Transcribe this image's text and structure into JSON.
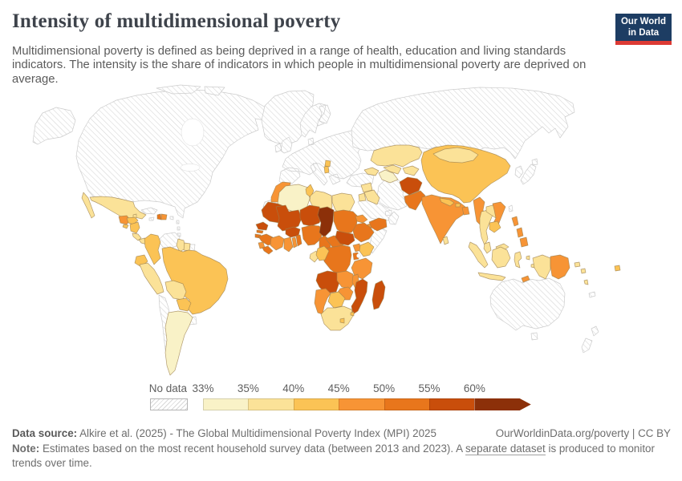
{
  "header": {
    "title": "Intensity of multidimensional poverty",
    "subtitle": "Multidimensional poverty is defined as being deprived in a range of health, education and living standards indicators. The intensity is the share of indicators in which people in multidimensional poverty are deprived on average.",
    "logo": {
      "line1": "Our World",
      "line2": "in Data"
    }
  },
  "legend": {
    "no_data_label": "No data",
    "ticks": [
      "33%",
      "35%",
      "40%",
      "45%",
      "50%",
      "55%",
      "60%"
    ]
  },
  "colors": {
    "palette": [
      "#F9F2C7",
      "#FBE298",
      "#FBC355",
      "#F79435",
      "#E8761C",
      "#C94E0B",
      "#8C3009"
    ],
    "no_data_hatch_line": "#d5d5d5",
    "data_border": "#9b7f4e",
    "no_data_border": "#cccccc",
    "logo_navy": "#1d3d63",
    "logo_red": "#dc3a34"
  },
  "footer": {
    "source_label": "Data source:",
    "source_text": " Alkire et al. (2025) - The Global Multidimensional Poverty Index (MPI) 2025",
    "rights": "OurWorldinData.org/poverty | CC BY",
    "note_label": "Note:",
    "note_pre": " Estimates based on the most recent household survey data (between 2013 and 2023). A ",
    "note_link": "separate dataset",
    "note_post": " is produced to monitor trends over time."
  },
  "chart_data": {
    "type": "choropleth_map",
    "title": "Intensity of multidimensional poverty",
    "unit": "%",
    "legend_position": "bottom",
    "bin_edges_percent": [
      33,
      35,
      40,
      45,
      50,
      55,
      60
    ],
    "bin_ranges": [
      "33-35%",
      "35-40%",
      "40-45%",
      "45-50%",
      "50-55%",
      "55-60%",
      "60%+"
    ],
    "palette": [
      "#F9F2C7",
      "#FBE298",
      "#FBC355",
      "#F79435",
      "#E8761C",
      "#C94E0B",
      "#8C3009"
    ],
    "bin_meaning": "0 = no data (hatched); 1-7 = index into bin_ranges/palette",
    "regions": {
      "alaska": 0,
      "canada-usa": 0,
      "arctic-islands": 0,
      "greenland": 0,
      "iceland": 0,
      "europe": 0,
      "russia": 0,
      "turkey": 0,
      "iran": 0,
      "saudi-arabia": 0,
      "oman": 0,
      "uae": 0,
      "somalia": 0,
      "western-sahara": 0,
      "venezuela": 0,
      "french-guiana": 0,
      "cuba": 0,
      "jamaica": 0,
      "puerto-rico": 0,
      "lesser-antilles": 0,
      "chile": 0,
      "uruguay": 0,
      "australia": 0,
      "new-zealand": 0,
      "new-caledonia": 0,
      "japan": 0,
      "korea": 0,
      "taiwan": 0,
      "argentina": 1,
      "algeria": 1,
      "turkmenistan": 1,
      "mexico": 2,
      "belize": 2,
      "costa-rica": 2,
      "panama": 2,
      "guyana": 2,
      "suriname": 2,
      "peru": 2,
      "bolivia": 2,
      "libya": 2,
      "egypt": 2,
      "gabon": 2,
      "south-africa": 2,
      "syria": 2,
      "iraq": 2,
      "jordan": 2,
      "caucasus": 2,
      "kazakhstan": 2,
      "uzbekistan": 2,
      "kyrgyzstan-tajikistan": 2,
      "mongolia": 2,
      "thailand": 2,
      "laos": 2,
      "malaysia": 2,
      "sumatra": 2,
      "java": 2,
      "borneo": 2,
      "sulawesi": 2,
      "moluccas-1": 2,
      "moluccas-2": 2,
      "west-papua": 2,
      "sri-lanka": 2,
      "solomon-1": 2,
      "solomon-2": 2,
      "vanuatu": 2,
      "honduras": 3,
      "el-salvador": 3,
      "nicaragua": 3,
      "colombia": 3,
      "ecuador": 3,
      "brazil": 3,
      "paraguay": 3,
      "tunisia": 3,
      "kenya": 3,
      "congo": 3,
      "botswana": 3,
      "lesotho": 3,
      "eswatini": 3,
      "china": 3,
      "nepal": 3,
      "bhutan": 3,
      "cambodia": 3,
      "fiji": 3,
      "albania": 3,
      "north-macedonia": 3,
      "guatemala": 4,
      "dominican-republic": 4,
      "morocco": 4,
      "sierra-leone": 4,
      "cote-divoire": 4,
      "ghana": 4,
      "togo": 4,
      "eritrea": 4,
      "djibouti": 4,
      "uganda": 4,
      "tanzania": 4,
      "zambia": 4,
      "malawi": 4,
      "zimbabwe": 4,
      "namibia": 4,
      "india": 4,
      "bangladesh": 4,
      "myanmar": 4,
      "vietnam": 4,
      "philippines-1": 4,
      "philippines-2": 4,
      "philippines-3": 4,
      "papua-new-guinea": 4,
      "timor": 4,
      "haiti": 5,
      "guinea": 5,
      "gambia": 5,
      "guinea-bissau": 5,
      "liberia": 5,
      "benin": 5,
      "nigeria": 5,
      "cameroon": 5,
      "central-african-republic": 5,
      "sudan": 5,
      "ethiopia": 5,
      "rwanda-burundi": 5,
      "drc": 5,
      "yemen": 5,
      "pakistan": 5,
      "mauritania": 6,
      "senegal": 6,
      "mali": 6,
      "burkina-faso": 6,
      "niger": 6,
      "south-sudan": 6,
      "angola": 6,
      "mozambique": 6,
      "madagascar": 6,
      "afghanistan": 6,
      "chad": 7
    }
  }
}
